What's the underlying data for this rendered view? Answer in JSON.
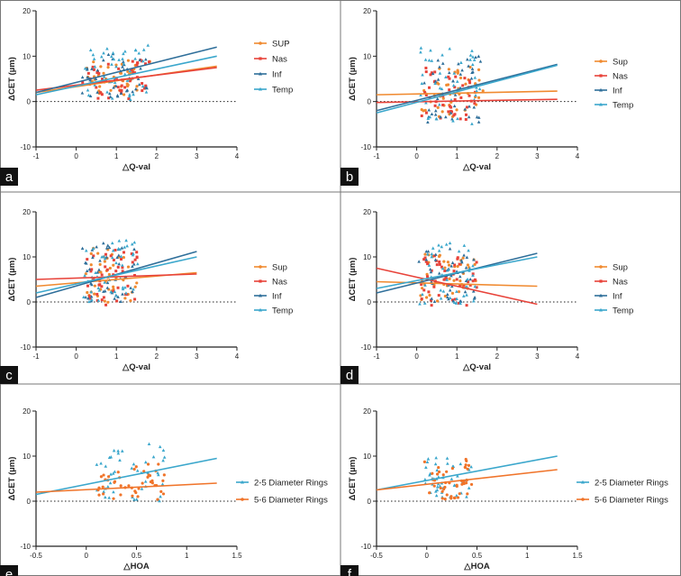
{
  "chart_data": [
    {
      "panel": "a",
      "type": "scatter",
      "xlabel": "△Q-val",
      "ylabel": "ΔCET (µm)",
      "xlim": [
        -1,
        4
      ],
      "ylim": [
        -10,
        20
      ],
      "xticks": [
        -1,
        0,
        1,
        2,
        3,
        4
      ],
      "yticks": [
        -10,
        0,
        10,
        20
      ],
      "zero_line": true,
      "series": [
        {
          "name": "SUP",
          "color": "#f08a30",
          "marker": "circle",
          "cx": [
            0.2,
            1.8
          ],
          "cy": [
            1,
            9
          ],
          "line": [
            [
              -1,
              2.0
            ],
            [
              3.5,
              7.8
            ]
          ]
        },
        {
          "name": "Nas",
          "color": "#e8433a",
          "marker": "square",
          "cx": [
            0.2,
            1.8
          ],
          "cy": [
            1,
            9
          ],
          "line": [
            [
              -1,
              2.5
            ],
            [
              3.5,
              7.5
            ]
          ]
        },
        {
          "name": "Inf",
          "color": "#2f6f9a",
          "marker": "triangle",
          "cx": [
            0.2,
            1.8
          ],
          "cy": [
            1,
            10
          ],
          "line": [
            [
              -1,
              2.0
            ],
            [
              3.5,
              12.0
            ]
          ]
        },
        {
          "name": "Temp",
          "color": "#3ba7cc",
          "marker": "triangle",
          "cx": [
            0.2,
            1.8
          ],
          "cy": [
            0,
            12
          ],
          "line": [
            [
              -1,
              1.5
            ],
            [
              3.5,
              10.0
            ]
          ]
        }
      ]
    },
    {
      "panel": "b",
      "type": "scatter",
      "xlabel": "△Q-val",
      "ylabel": "ΔCET (µm)",
      "xlim": [
        -1,
        4
      ],
      "ylim": [
        -10,
        20
      ],
      "xticks": [
        -1,
        0,
        1,
        2,
        3,
        4
      ],
      "yticks": [
        -10,
        0,
        10,
        20
      ],
      "zero_line": true,
      "series": [
        {
          "name": "Sup",
          "color": "#f08a30",
          "marker": "circle",
          "cx": [
            0.1,
            1.6
          ],
          "cy": [
            -4,
            8
          ],
          "line": [
            [
              -1,
              1.5
            ],
            [
              3.5,
              2.3
            ]
          ]
        },
        {
          "name": "Nas",
          "color": "#e8433a",
          "marker": "square",
          "cx": [
            0.1,
            1.6
          ],
          "cy": [
            -4,
            7
          ],
          "line": [
            [
              -1,
              -0.2
            ],
            [
              3.5,
              0.5
            ]
          ]
        },
        {
          "name": "Inf",
          "color": "#2f6f9a",
          "marker": "triangle",
          "cx": [
            0.1,
            1.6
          ],
          "cy": [
            -5,
            10
          ],
          "line": [
            [
              -1,
              -2.0
            ],
            [
              3.5,
              8.2
            ]
          ]
        },
        {
          "name": "Temp",
          "color": "#3ba7cc",
          "marker": "triangle",
          "cx": [
            0.1,
            1.6
          ],
          "cy": [
            -5,
            12
          ],
          "line": [
            [
              -1,
              -2.5
            ],
            [
              3.5,
              8.0
            ]
          ]
        }
      ]
    },
    {
      "panel": "c",
      "type": "scatter",
      "xlabel": "△Q-val",
      "ylabel": "ΔCET (µm)",
      "xlim": [
        -1,
        4
      ],
      "ylim": [
        -10,
        20
      ],
      "xticks": [
        -1,
        0,
        1,
        2,
        3,
        4
      ],
      "yticks": [
        -10,
        0,
        10,
        20
      ],
      "zero_line": true,
      "series": [
        {
          "name": "Sup",
          "color": "#f08a30",
          "marker": "circle",
          "cx": [
            0.2,
            1.5
          ],
          "cy": [
            0,
            12
          ],
          "line": [
            [
              -1,
              3.5
            ],
            [
              3.0,
              6.5
            ]
          ]
        },
        {
          "name": "Nas",
          "color": "#e8433a",
          "marker": "square",
          "cx": [
            0.2,
            1.5
          ],
          "cy": [
            0,
            12
          ],
          "line": [
            [
              -1,
              5.0
            ],
            [
              3.0,
              6.2
            ]
          ]
        },
        {
          "name": "Inf",
          "color": "#2f6f9a",
          "marker": "triangle",
          "cx": [
            0.2,
            1.5
          ],
          "cy": [
            0,
            13
          ],
          "line": [
            [
              -1,
              1.0
            ],
            [
              3.0,
              11.2
            ]
          ]
        },
        {
          "name": "Temp",
          "color": "#3ba7cc",
          "marker": "triangle",
          "cx": [
            0.2,
            1.5
          ],
          "cy": [
            0,
            14
          ],
          "line": [
            [
              -1,
              2.0
            ],
            [
              3.0,
              10.0
            ]
          ]
        }
      ]
    },
    {
      "panel": "d",
      "type": "scatter",
      "xlabel": "△Q-val",
      "ylabel": "ΔCET (µm)",
      "xlim": [
        -1,
        4
      ],
      "ylim": [
        -10,
        20
      ],
      "xticks": [
        -1,
        0,
        1,
        2,
        3,
        4
      ],
      "yticks": [
        -10,
        0,
        10,
        20
      ],
      "zero_line": true,
      "series": [
        {
          "name": "Sup",
          "color": "#f08a30",
          "marker": "circle",
          "cx": [
            0.1,
            1.5
          ],
          "cy": [
            0,
            11
          ],
          "line": [
            [
              -1,
              4.5
            ],
            [
              3.0,
              3.5
            ]
          ]
        },
        {
          "name": "Nas",
          "color": "#e8433a",
          "marker": "square",
          "cx": [
            0.1,
            1.5
          ],
          "cy": [
            -2,
            11
          ],
          "line": [
            [
              -1,
              7.5
            ],
            [
              3.0,
              -0.5
            ]
          ]
        },
        {
          "name": "Inf",
          "color": "#2f6f9a",
          "marker": "triangle",
          "cx": [
            0.1,
            1.5
          ],
          "cy": [
            0,
            12
          ],
          "line": [
            [
              -1,
              2.0
            ],
            [
              3.0,
              10.8
            ]
          ]
        },
        {
          "name": "Temp",
          "color": "#3ba7cc",
          "marker": "triangle",
          "cx": [
            0.1,
            1.5
          ],
          "cy": [
            0,
            13
          ],
          "line": [
            [
              -1,
              3.0
            ],
            [
              3.0,
              10.0
            ]
          ]
        }
      ]
    },
    {
      "panel": "e",
      "type": "scatter",
      "xlabel": "△HOA",
      "ylabel": "ΔCET (µm)",
      "xlim": [
        -0.5,
        1.5
      ],
      "ylim": [
        -10,
        20
      ],
      "xticks": [
        -0.5,
        0.0,
        0.5,
        1.0,
        1.5
      ],
      "yticks": [
        -10,
        0,
        10,
        20
      ],
      "zero_line": true,
      "series": [
        {
          "name": "2-5 Diameter Rings",
          "color": "#3ba7cc",
          "marker": "triangle",
          "cx": [
            0.1,
            0.8
          ],
          "cy": [
            0,
            12
          ],
          "line": [
            [
              -0.5,
              1.5
            ],
            [
              1.3,
              9.5
            ]
          ]
        },
        {
          "name": "5-6 Diameter Rings",
          "color": "#f0742a",
          "marker": "circle",
          "cx": [
            0.1,
            0.8
          ],
          "cy": [
            0,
            8
          ],
          "line": [
            [
              -0.5,
              2.0
            ],
            [
              1.3,
              4.0
            ]
          ]
        }
      ]
    },
    {
      "panel": "f",
      "type": "scatter",
      "xlabel": "△HOA",
      "ylabel": "ΔCET (µm)",
      "xlim": [
        -0.5,
        1.5
      ],
      "ylim": [
        -10,
        20
      ],
      "xticks": [
        -0.5,
        0.0,
        0.5,
        1.0,
        1.5
      ],
      "yticks": [
        -10,
        0,
        10,
        20
      ],
      "zero_line": true,
      "series": [
        {
          "name": "2-5 Diameter Rings",
          "color": "#3ba7cc",
          "marker": "triangle",
          "cx": [
            0.0,
            0.45
          ],
          "cy": [
            1,
            10
          ],
          "line": [
            [
              -0.5,
              2.5
            ],
            [
              1.3,
              10.0
            ]
          ]
        },
        {
          "name": "5-6 Diameter Rings",
          "color": "#f0742a",
          "marker": "circle",
          "cx": [
            0.0,
            0.45
          ],
          "cy": [
            0,
            9
          ],
          "line": [
            [
              -0.5,
              2.5
            ],
            [
              1.3,
              7.0
            ]
          ]
        }
      ]
    }
  ]
}
